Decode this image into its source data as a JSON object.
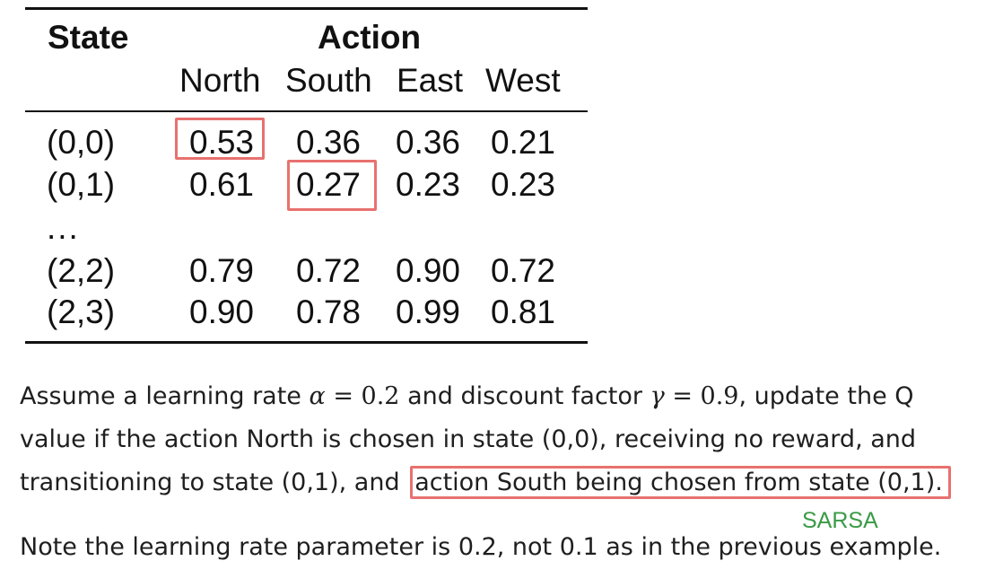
{
  "table": {
    "state_header": "State",
    "action_header": "Action",
    "columns": [
      "North",
      "South",
      "East",
      "West"
    ],
    "rows": [
      {
        "state": "(0,0)",
        "values": [
          "0.53",
          "0.36",
          "0.36",
          "0.21"
        ]
      },
      {
        "state": "(0,1)",
        "values": [
          "0.61",
          "0.27",
          "0.23",
          "0.23"
        ]
      },
      {
        "state": "...",
        "values": []
      },
      {
        "state": "(2,2)",
        "values": [
          "0.79",
          "0.72",
          "0.90",
          "0.72"
        ]
      },
      {
        "state": "(2,3)",
        "values": [
          "0.90",
          "0.78",
          "0.99",
          "0.81"
        ]
      }
    ],
    "highlights": [
      {
        "row": 0,
        "col": 0
      },
      {
        "row": 1,
        "col": 1
      }
    ],
    "highlight_color": "#e8716f"
  },
  "paragraph": {
    "l1_a": "Assume a learning rate ",
    "alpha_sym": "α",
    "eq1": " = ",
    "alpha_val": "0.2",
    "l1_b": " and discount factor ",
    "gamma_sym": "γ",
    "eq2": " = ",
    "gamma_val": "0.9",
    "l1_c": ", update the Q",
    "l2": "value if the action North is chosen in state (0,0), receiving no reward, and",
    "l3_a": "transitioning to state (0,1), and ",
    "l3_highlight": "action South being chosen from state (0,1).",
    "note": "Note the learning rate parameter is 0.2, not 0.1 as in the previous example."
  },
  "annotation": {
    "label": "SARSA",
    "color": "#3a9a46"
  }
}
